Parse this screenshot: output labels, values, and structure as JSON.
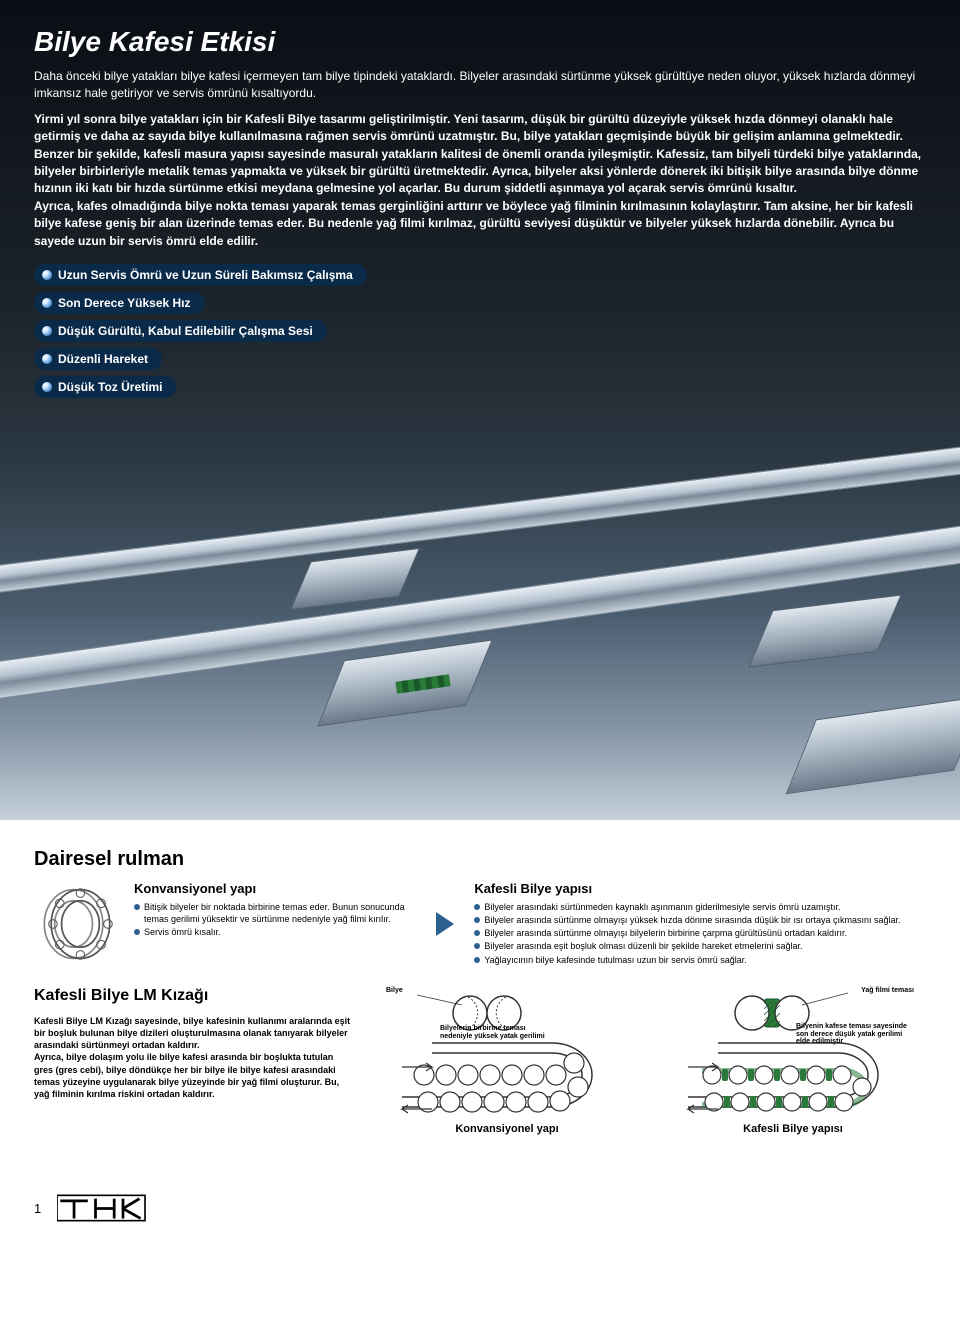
{
  "hero": {
    "title": "Bilye Kafesi Etkisi",
    "intro": "Daha önceki bilye yatakları bilye kafesi içermeyen tam bilye tipindeki yataklardı. Bilyeler arasındaki sürtünme yüksek gürültüye neden oluyor, yüksek hızlarda dönmeyi imkansız hale getiriyor ve servis ömrünü kısaltıyordu.",
    "body": "Yirmi yıl sonra bilye yatakları için bir Kafesli Bilye tasarımı geliştirilmiştir. Yeni tasarım, düşük bir gürültü düzeyiyle yüksek hızda dönmeyi olanaklı hale getirmiş ve daha az sayıda bilye kullanılmasına rağmen servis ömrünü uzatmıştır. Bu, bilye yatakları geçmişinde büyük bir gelişim anlamına gelmektedir.\nBenzer bir şekilde, kafesli masura yapısı sayesinde masuralı yatakların kalitesi de önemli oranda iyileşmiştir. Kafessiz, tam bilyeli türdeki bilye yataklarında, bilyeler birbirleriyle metalik temas yapmakta ve yüksek bir gürültü üretmektedir. Ayrıca, bilyeler aksi yönlerde dönerek iki bitişik bilye arasında bilye dönme hızının iki katı bir hızda sürtünme etkisi meydana gelmesine yol açarlar. Bu durum şiddetli aşınmaya yol açarak servis ömrünü kısaltır.\nAyrıca, kafes olmadığında bilye nokta teması yaparak temas gerginliğini arttırır ve böylece yağ filminin kırılmasının kolaylaştırır. Tam aksine, her bir kafesli bilye kafese geniş bir alan üzerinde temas eder. Bu nedenle yağ filmi kırılmaz, gürültü seviyesi düşüktür ve bilyeler yüksek hızlarda dönebilir. Ayrıca bu sayede uzun bir servis ömrü elde edilir.",
    "pills": [
      "Uzun Servis Ömrü ve Uzun Süreli Bakımsız Çalışma",
      "Son Derece Yüksek Hız",
      "Düşük Gürültü, Kabul Edilebilir Çalışma Sesi",
      "Düzenli Hareket",
      "Düşük Toz Üretimi"
    ]
  },
  "lower": {
    "section_title": "Dairesel rulman",
    "conventional": {
      "title": "Konvansiyonel yapı",
      "items": [
        "Bitişik bilyeler bir noktada birbirine temas eder. Bunun sonucunda temas gerilimi yüksektir ve sürtünme nedeniyle yağ filmi kırılır.",
        "Servis ömrü kısalır."
      ]
    },
    "caged": {
      "title": "Kafesli Bilye yapısı",
      "items": [
        "Bilyeler arasındaki sürtünmeden kaynaklı aşınmanın giderilmesiyle servis ömrü uzamıştır.",
        "Bilyeler arasında sürtünme olmayışı yüksek hızda dönme sırasında düşük bir ısı ortaya çıkmasını sağlar.",
        "Bilyeler arasında sürtünme olmayışı bilyelerin birbirine çarpma gürültüsünü ortadan kaldırır.",
        "Bilyeler arasında eşit boşluk olması düzenli bir şekilde hareket etmelerini sağlar.",
        "Yağlayıcının bilye kafesinde tutulması uzun bir servis ömrü sağlar."
      ]
    },
    "lm": {
      "title": "Kafesli Bilye LM Kızağı",
      "text": "Kafesli Bilye LM Kızağı sayesinde, bilye kafesinin kullanımı aralarında eşit bir boşluk bulunan bilye dizileri oluşturulmasına olanak tanıyarak bilyeler arasındaki sürtünmeyi ortadan kaldırır.\nAyrıca, bilye dolaşım yolu ile bilye kafesi arasında bir boşlukta tutulan gres (gres cebi), bilye döndükçe her bir bilye ile bilye kafesi arasındaki temas yüzeyine uygulanarak bilye yüzeyinde bir yağ filmi oluşturur. Bu, yağ filminin kırılma riskini ortadan kaldırır."
    },
    "diag_labels": {
      "bilye": "Bilye",
      "yag": "Yağ filmi teması",
      "conv_note": "Bilyelerin birbirine teması nedeniyle yüksek yatak gerilimi",
      "caged_note": "Bilyenin kafese teması sayesinde son derece düşük yatak gerilimi elde edilmiştir",
      "conv_cap": "Konvansiyonel yapı",
      "caged_cap": "Kafesli Bilye yapısı"
    }
  },
  "colors": {
    "pill_bg": "#0a2a4a",
    "accent": "#2d5f8f",
    "cage_green": "#2a7a3a"
  },
  "page": "1"
}
